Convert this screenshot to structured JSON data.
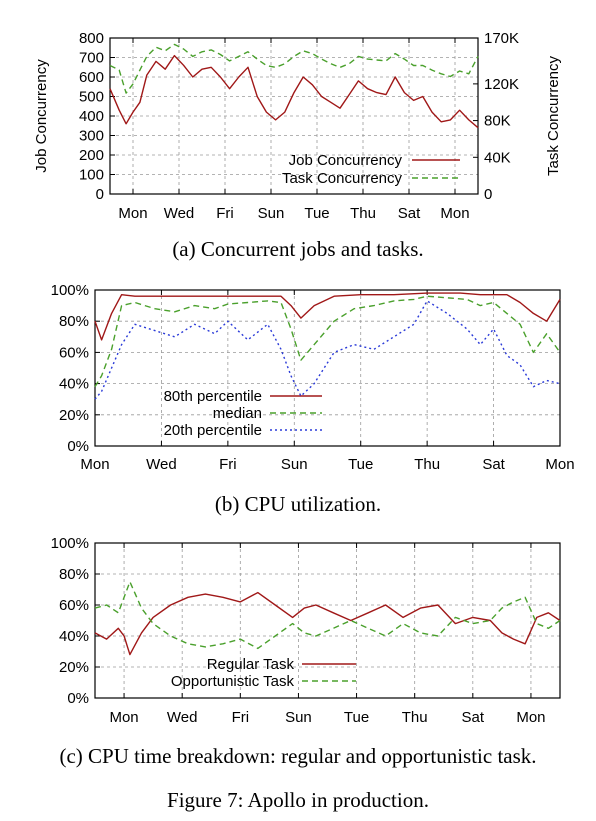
{
  "figure": {
    "caption": "Figure 7: Apollo in production."
  },
  "colors": {
    "regular": "#a01818",
    "opportunistic": "#4aa02c",
    "twentieth": "#2a3ad8",
    "grid": "#9a9a9a"
  },
  "chart_data": [
    {
      "id": "a",
      "type": "line",
      "caption": "(a) Concurrent jobs and tasks.",
      "ylabel": "Job Concurrency",
      "y2label": "Task Concurrency",
      "ylim": [
        0,
        800
      ],
      "yticks": [
        "800",
        "700",
        "600",
        "500",
        "400",
        "300",
        "200",
        "100",
        "0"
      ],
      "y2lim": [
        0,
        170000
      ],
      "y2ticks": [
        "170K",
        "120K",
        "80K",
        "40K",
        "0"
      ],
      "y2tick_values": [
        170000,
        120000,
        80000,
        40000,
        0
      ],
      "xlim": [
        0,
        8
      ],
      "xticks": [
        "Mon",
        "Wed",
        "Fri",
        "Sun",
        "Tue",
        "Thu",
        "Sat",
        "Mon"
      ],
      "xtick_values": [
        0.5,
        1.5,
        2.5,
        3.5,
        4.5,
        5.5,
        6.5,
        7.5
      ],
      "grid": true,
      "legend": "bottom-right",
      "series": [
        {
          "name": "Job Concurrency",
          "axis": "left",
          "color": "#a01818",
          "dash": "",
          "x": [
            0,
            0.2,
            0.35,
            0.5,
            0.65,
            0.8,
            1.0,
            1.2,
            1.4,
            1.6,
            1.8,
            2.0,
            2.2,
            2.4,
            2.6,
            2.8,
            3.0,
            3.2,
            3.4,
            3.6,
            3.8,
            4.0,
            4.2,
            4.4,
            4.6,
            4.8,
            5.0,
            5.2,
            5.4,
            5.6,
            5.8,
            6.0,
            6.2,
            6.4,
            6.6,
            6.8,
            7.0,
            7.2,
            7.4,
            7.6,
            7.8,
            8.0
          ],
          "values": [
            540,
            430,
            360,
            420,
            470,
            610,
            680,
            640,
            710,
            660,
            600,
            640,
            650,
            600,
            540,
            600,
            650,
            500,
            420,
            380,
            420,
            520,
            600,
            560,
            500,
            470,
            440,
            510,
            580,
            540,
            520,
            510,
            600,
            520,
            480,
            500,
            420,
            370,
            380,
            430,
            380,
            340
          ]
        },
        {
          "name": "Task Concurrency",
          "axis": "right",
          "color": "#4aa02c",
          "dash": "6,4",
          "x": [
            0,
            0.2,
            0.35,
            0.5,
            0.65,
            0.8,
            1.0,
            1.2,
            1.4,
            1.6,
            1.8,
            2.0,
            2.2,
            2.4,
            2.6,
            2.8,
            3.0,
            3.2,
            3.4,
            3.6,
            3.8,
            4.0,
            4.2,
            4.4,
            4.6,
            4.8,
            5.0,
            5.2,
            5.4,
            5.6,
            5.8,
            6.0,
            6.2,
            6.4,
            6.6,
            6.8,
            7.0,
            7.2,
            7.4,
            7.6,
            7.8,
            8.0
          ],
          "values": [
            140000,
            135000,
            110000,
            120000,
            135000,
            150000,
            160000,
            156000,
            163000,
            158000,
            150000,
            155000,
            157000,
            152000,
            145000,
            150000,
            155000,
            147000,
            140000,
            138000,
            142000,
            150000,
            156000,
            153000,
            147000,
            142000,
            138000,
            142000,
            150000,
            147000,
            146000,
            145000,
            153000,
            147000,
            140000,
            140000,
            135000,
            131000,
            128000,
            134000,
            131000,
            150000
          ]
        }
      ]
    },
    {
      "id": "b",
      "type": "line",
      "caption": "(b) CPU utilization.",
      "ylim": [
        0,
        100
      ],
      "yticks": [
        "100%",
        "80%",
        "60%",
        "40%",
        "20%",
        "0%"
      ],
      "xlim": [
        0,
        7
      ],
      "xticks": [
        "Mon",
        "Wed",
        "Fri",
        "Sun",
        "Tue",
        "Thu",
        "Sat",
        "Mon"
      ],
      "xtick_values": [
        0,
        1,
        2,
        3,
        4,
        5,
        6,
        7
      ],
      "grid": true,
      "legend": "left",
      "series": [
        {
          "name": "80th percentile",
          "color": "#a01818",
          "dash": "",
          "x": [
            0,
            0.1,
            0.25,
            0.4,
            0.6,
            1.0,
            1.5,
            2.0,
            2.5,
            2.8,
            2.95,
            3.1,
            3.3,
            3.6,
            4.0,
            4.5,
            5.0,
            5.5,
            5.8,
            6.0,
            6.2,
            6.4,
            6.6,
            6.8,
            7.0
          ],
          "values": [
            80,
            68,
            85,
            97,
            96,
            96,
            96,
            96,
            96,
            96,
            90,
            82,
            90,
            96,
            97,
            97,
            98,
            98,
            97,
            97,
            97,
            92,
            85,
            80,
            94
          ]
        },
        {
          "name": "median",
          "color": "#4aa02c",
          "dash": "6,4",
          "x": [
            0,
            0.1,
            0.25,
            0.4,
            0.6,
            0.9,
            1.2,
            1.5,
            1.8,
            2.0,
            2.3,
            2.6,
            2.8,
            2.95,
            3.1,
            3.3,
            3.6,
            3.9,
            4.2,
            4.5,
            4.8,
            5.0,
            5.3,
            5.6,
            5.8,
            6.0,
            6.2,
            6.4,
            6.6,
            6.8,
            7.0
          ],
          "values": [
            38,
            45,
            62,
            90,
            92,
            88,
            86,
            90,
            88,
            91,
            92,
            93,
            92,
            75,
            55,
            65,
            80,
            88,
            90,
            93,
            94,
            96,
            95,
            94,
            90,
            92,
            85,
            78,
            60,
            72,
            60
          ]
        },
        {
          "name": "20th percentile",
          "color": "#2a3ad8",
          "dash": "2,3",
          "x": [
            0,
            0.1,
            0.25,
            0.4,
            0.6,
            0.9,
            1.2,
            1.5,
            1.8,
            2.0,
            2.3,
            2.6,
            2.8,
            2.95,
            3.1,
            3.3,
            3.6,
            3.9,
            4.2,
            4.5,
            4.8,
            5.0,
            5.3,
            5.6,
            5.8,
            6.0,
            6.2,
            6.4,
            6.6,
            6.8,
            7.0
          ],
          "values": [
            30,
            35,
            50,
            65,
            78,
            74,
            70,
            78,
            72,
            80,
            68,
            78,
            62,
            45,
            32,
            40,
            60,
            65,
            62,
            70,
            78,
            93,
            85,
            75,
            65,
            75,
            58,
            52,
            38,
            42,
            40
          ]
        }
      ]
    },
    {
      "id": "c",
      "type": "line",
      "caption": "(c) CPU time breakdown: regular and opportunistic task.",
      "ylim": [
        0,
        100
      ],
      "yticks": [
        "100%",
        "80%",
        "60%",
        "40%",
        "20%",
        "0%"
      ],
      "xlim": [
        0,
        8
      ],
      "xticks": [
        "Mon",
        "Wed",
        "Fri",
        "Sun",
        "Tue",
        "Thu",
        "Sat",
        "Mon"
      ],
      "xtick_values": [
        0.5,
        1.5,
        2.5,
        3.5,
        4.5,
        5.5,
        6.5,
        7.5
      ],
      "grid": true,
      "legend": "bottom-center",
      "series": [
        {
          "name": "Regular Task",
          "color": "#a01818",
          "dash": "",
          "x": [
            0,
            0.2,
            0.4,
            0.5,
            0.6,
            0.8,
            1.0,
            1.3,
            1.6,
            1.9,
            2.2,
            2.5,
            2.8,
            3.1,
            3.4,
            3.6,
            3.8,
            4.1,
            4.4,
            4.7,
            5.0,
            5.3,
            5.6,
            5.9,
            6.2,
            6.5,
            6.8,
            7.0,
            7.2,
            7.4,
            7.6,
            7.8,
            8.0
          ],
          "values": [
            42,
            38,
            45,
            40,
            28,
            42,
            52,
            60,
            65,
            67,
            65,
            62,
            68,
            60,
            52,
            58,
            60,
            55,
            50,
            55,
            60,
            52,
            58,
            60,
            48,
            52,
            50,
            42,
            38,
            35,
            52,
            55,
            50
          ]
        },
        {
          "name": "Opportunistic Task",
          "color": "#4aa02c",
          "dash": "6,4",
          "x": [
            0,
            0.2,
            0.4,
            0.5,
            0.6,
            0.8,
            1.0,
            1.3,
            1.6,
            1.9,
            2.2,
            2.5,
            2.8,
            3.1,
            3.4,
            3.6,
            3.8,
            4.1,
            4.4,
            4.7,
            5.0,
            5.3,
            5.6,
            5.9,
            6.2,
            6.5,
            6.8,
            7.0,
            7.2,
            7.4,
            7.6,
            7.8,
            8.0
          ],
          "values": [
            58,
            60,
            55,
            65,
            75,
            58,
            48,
            40,
            35,
            33,
            35,
            38,
            32,
            40,
            48,
            42,
            40,
            45,
            50,
            45,
            40,
            48,
            42,
            40,
            52,
            48,
            50,
            58,
            62,
            65,
            48,
            45,
            50
          ]
        }
      ]
    }
  ]
}
